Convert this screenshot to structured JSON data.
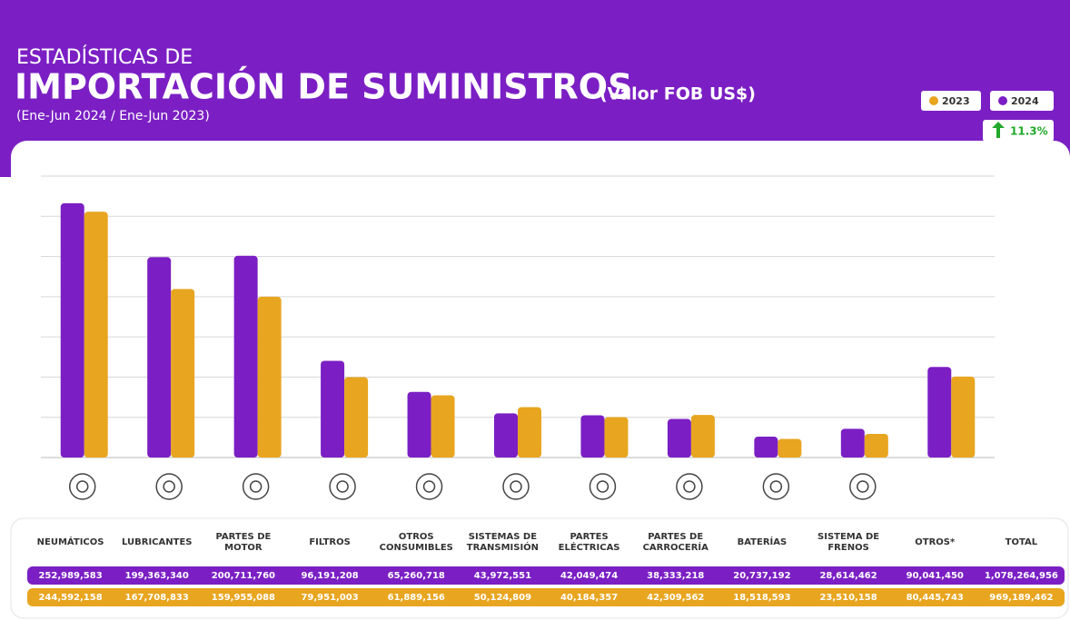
{
  "chart_data": {
    "type": "bar",
    "title_line1": "ESTADÍSTICAS DE",
    "title": "IMPORTACIÓN DE SUMINISTROS",
    "unit_note": "(Valor FOB US$)",
    "subtitle": "(Ene-Jun 2024 / Ene-Jun 2023)",
    "change_annotation": "11.3%",
    "categories": [
      "NEUMÁTICOS",
      "LUBRICANTES",
      "PARTES DE MOTOR",
      "FILTROS",
      "OTROS CONSUMIBLES",
      "SISTEMAS DE TRANSMISIÓN",
      "PARTES ELÉCTRICAS",
      "PARTES DE CARROCERÍA",
      "BATERÍAS",
      "SISTEMA DE FRENOS",
      "OTROS*"
    ],
    "series": [
      {
        "name": "2023",
        "color": "#e8a51f",
        "values": [
          244592158,
          167708833,
          159955088,
          79951003,
          61889156,
          50124809,
          40184357,
          42309562,
          18518593,
          23510158,
          80445743
        ],
        "value_labels": [
          "244,592,158",
          "167,708,833",
          "159,955,088",
          "79,951,003",
          "61,889,156",
          "50,124,809",
          "40,184,357",
          "42,309,562",
          "18,518,593",
          "23,510,158",
          "80,445,743"
        ]
      },
      {
        "name": "2024",
        "color": "#7b1fc4",
        "values": [
          252989583,
          199363340,
          200711760,
          96191208,
          65260718,
          43972551,
          42049474,
          38333218,
          20737192,
          28614462,
          90041450
        ],
        "value_labels": [
          "252,989,583",
          "199,363,340",
          "200,711,760",
          "96,191,208",
          "65,260,718",
          "43,972,551",
          "42,049,474",
          "38,333,218",
          "20,737,192",
          "28,614,462",
          "90,041,450"
        ]
      }
    ],
    "totals": {
      "label": "TOTAL",
      "values": [
        969189462,
        1078264956
      ],
      "value_labels": [
        "969,189,462",
        "1,078,264,956"
      ]
    },
    "ylim": [
      0,
      280000000
    ],
    "yticks": [
      0,
      40000000,
      80000000,
      120000000,
      160000000,
      200000000,
      240000000,
      280000000
    ],
    "grid": true
  }
}
